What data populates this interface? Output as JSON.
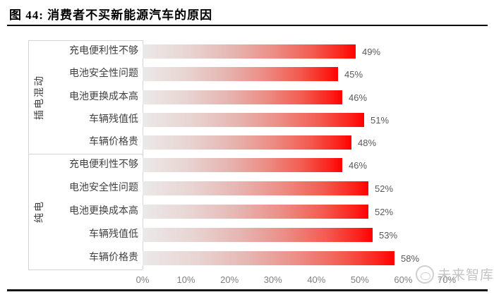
{
  "figure": {
    "title": "图  44:  消费者不买新能源汽车的原因",
    "watermark_text": "未来智库"
  },
  "chart_data": {
    "type": "bar",
    "orientation": "horizontal",
    "title": "消费者不买新能源汽车的原因",
    "value_suffix": "%",
    "xlim": [
      0,
      70
    ],
    "x_ticks": [
      "0%",
      "10%",
      "20%",
      "30%",
      "40%",
      "50%",
      "60%",
      "70%"
    ],
    "grid": false,
    "groups": [
      {
        "name": "插电混动",
        "categories": [
          "充电便利性不够",
          "电池安全性问题",
          "电池更换成本高",
          "车辆残值低",
          "车辆价格贵"
        ],
        "values": [
          49,
          45,
          46,
          51,
          48
        ]
      },
      {
        "name": "纯电",
        "categories": [
          "充电便利性不够",
          "电池安全性问题",
          "电池更换成本高",
          "车辆残值低",
          "车辆价格贵"
        ],
        "values": [
          46,
          52,
          52,
          53,
          58
        ]
      }
    ],
    "colors": {
      "bar_gradient_start": "#ebe9e9",
      "bar_gradient_end": "#ff0000",
      "value_label": "#595959",
      "tick_label": "#7f7f7f",
      "frame_line": "#d6d3d3"
    }
  }
}
